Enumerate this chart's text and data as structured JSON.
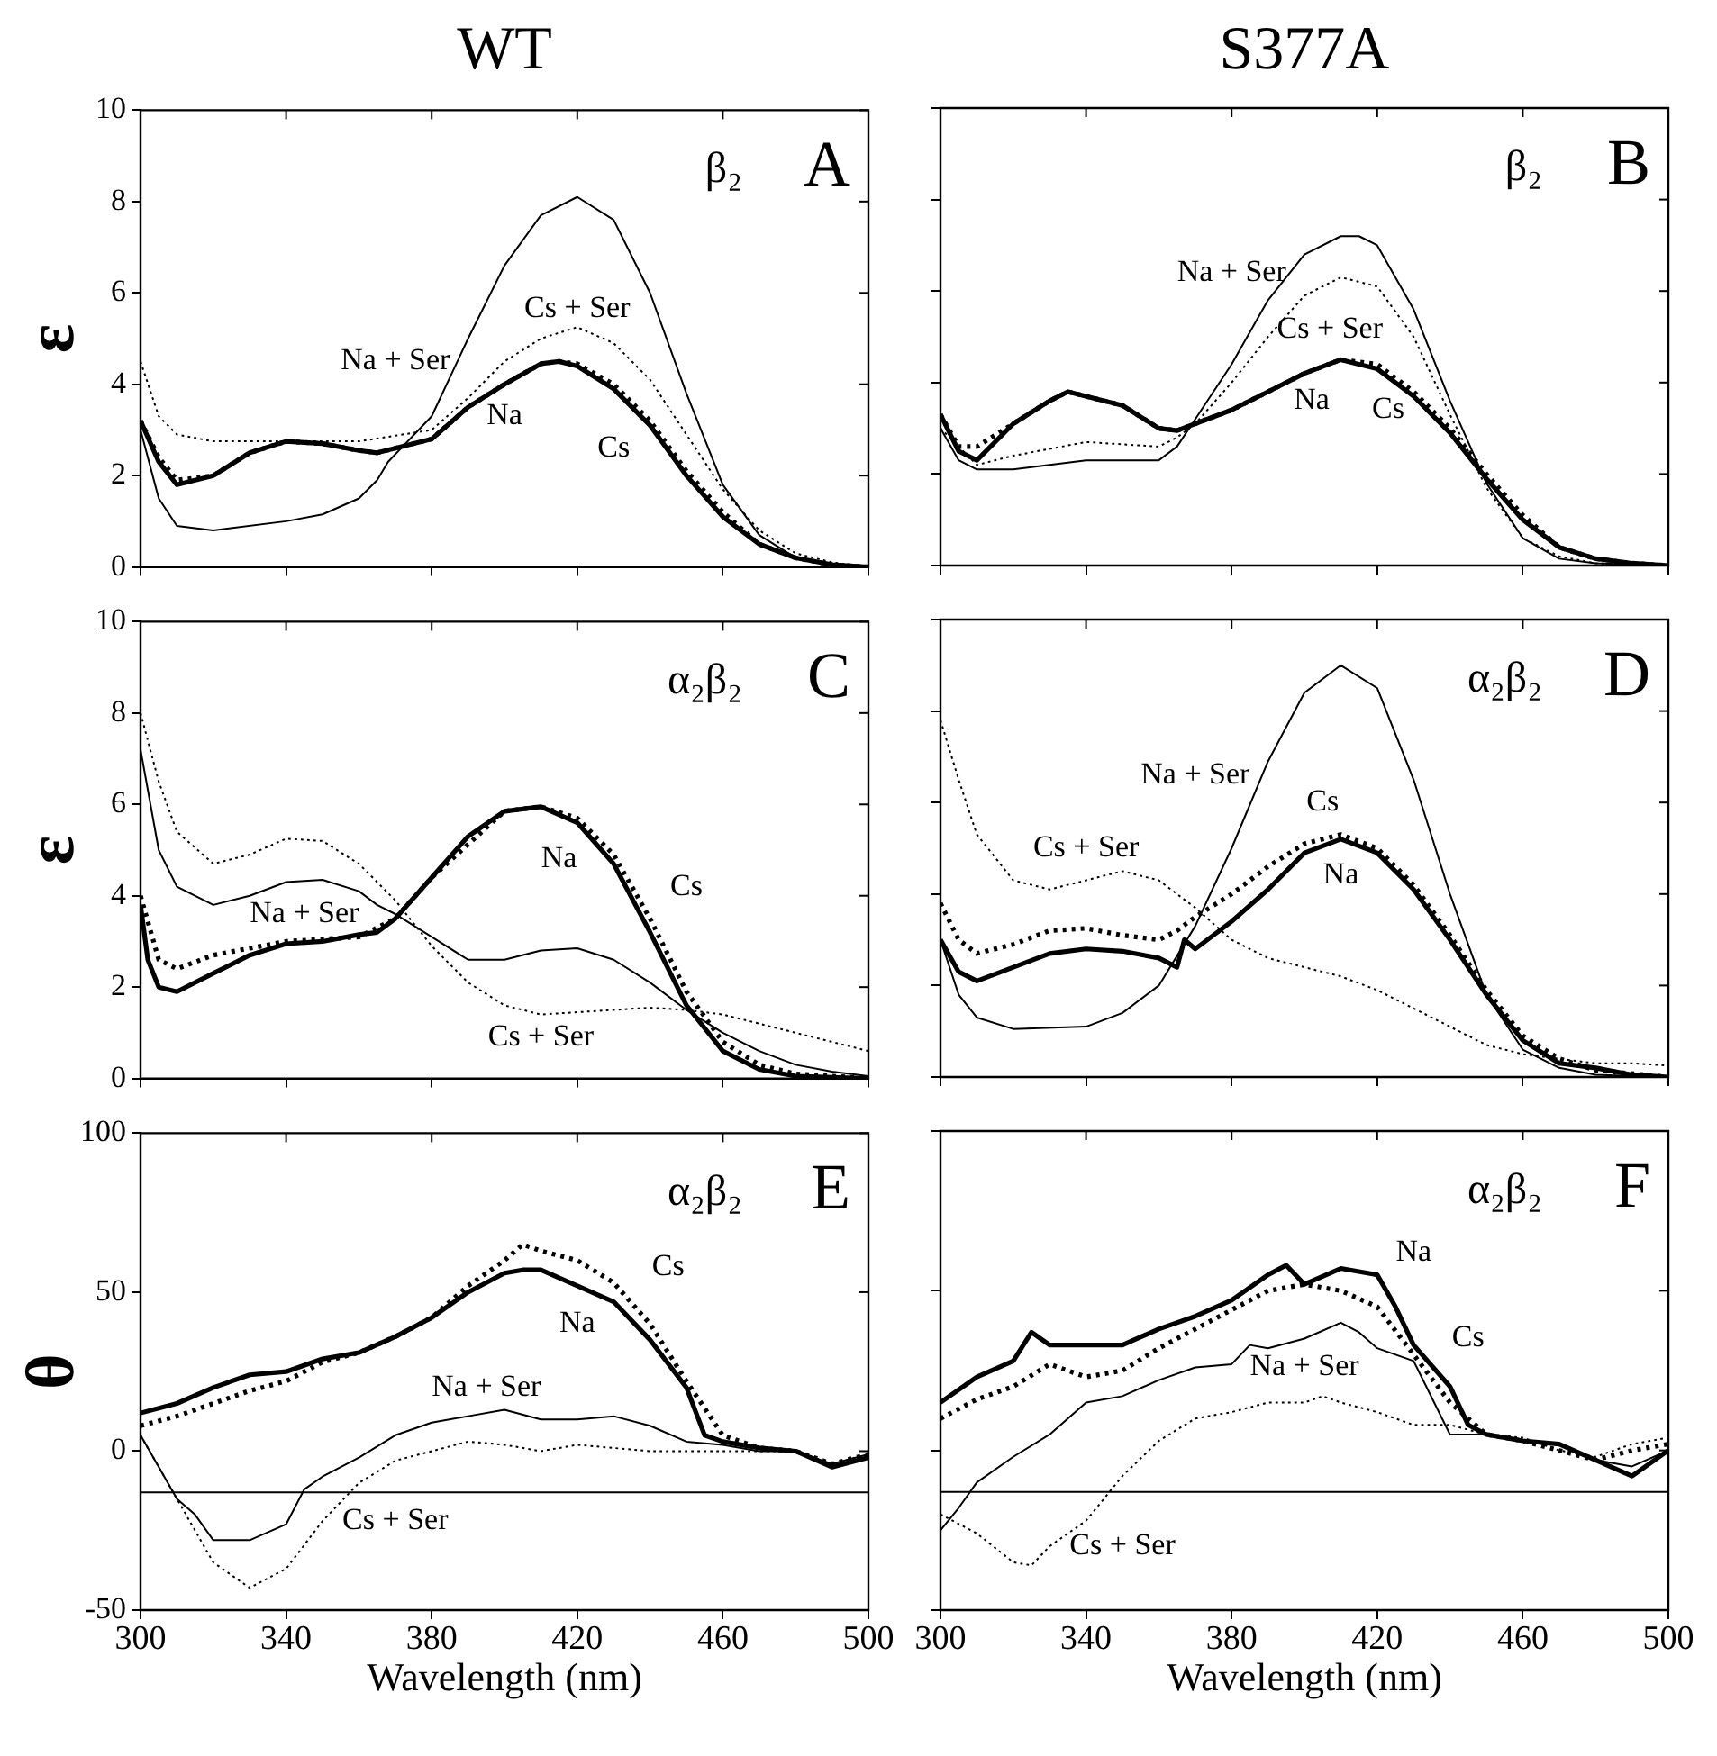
{
  "chart_data": [
    {
      "type": "line",
      "title": "A",
      "subtitle": "β₂",
      "ylabel": "ε",
      "annotations": [
        "WT"
      ],
      "xlim": [
        300,
        500
      ],
      "xticks": [
        300,
        340,
        380,
        420,
        460,
        500
      ],
      "ylim": [
        0,
        10
      ],
      "yticks": [
        0,
        2,
        4,
        6,
        8,
        10
      ],
      "tick_labels": "y",
      "legend": false,
      "grid": false,
      "marker": "none",
      "series": [
        {
          "name": "Na",
          "color": "#000000",
          "line_style": "solid",
          "x": [
            300,
            305,
            310,
            320,
            330,
            340,
            350,
            360,
            365,
            370,
            380,
            390,
            400,
            410,
            415,
            420,
            430,
            440,
            450,
            460,
            470,
            480,
            490,
            500
          ],
          "values": [
            3.2,
            2.3,
            1.8,
            2.0,
            2.5,
            2.75,
            2.7,
            2.55,
            2.5,
            2.6,
            2.8,
            3.5,
            4.0,
            4.45,
            4.5,
            4.4,
            3.9,
            3.1,
            2.0,
            1.1,
            0.5,
            0.2,
            0.05,
            0
          ]
        },
        {
          "name": "Cs",
          "color": "#000000",
          "line_style": "dotted",
          "x": [
            300,
            305,
            310,
            320,
            330,
            340,
            350,
            360,
            365,
            370,
            380,
            390,
            400,
            410,
            415,
            420,
            430,
            440,
            450,
            460,
            470,
            480,
            490,
            500
          ],
          "values": [
            3.2,
            2.4,
            1.9,
            2.0,
            2.5,
            2.75,
            2.7,
            2.55,
            2.5,
            2.6,
            2.8,
            3.5,
            4.0,
            4.45,
            4.5,
            4.45,
            4.0,
            3.2,
            2.1,
            1.2,
            0.5,
            0.2,
            0.05,
            0
          ]
        },
        {
          "name": "Na + Ser",
          "color": "#000000",
          "line_style": "solid",
          "x": [
            300,
            305,
            310,
            320,
            340,
            350,
            360,
            365,
            368,
            380,
            390,
            400,
            410,
            420,
            430,
            440,
            450,
            460,
            470,
            480,
            490,
            500
          ],
          "values": [
            3.0,
            1.5,
            0.9,
            0.8,
            1.0,
            1.15,
            1.5,
            1.9,
            2.3,
            3.3,
            5.0,
            6.6,
            7.7,
            8.1,
            7.6,
            6.0,
            3.8,
            1.8,
            0.7,
            0.2,
            0.05,
            0
          ]
        },
        {
          "name": "Cs + Ser",
          "color": "#000000",
          "line_style": "dotted",
          "x": [
            300,
            305,
            310,
            320,
            340,
            360,
            380,
            390,
            400,
            410,
            420,
            430,
            440,
            450,
            460,
            470,
            480,
            490,
            500
          ],
          "values": [
            4.5,
            3.3,
            2.9,
            2.75,
            2.75,
            2.75,
            3.0,
            3.7,
            4.5,
            5.0,
            5.25,
            4.9,
            4.1,
            2.9,
            1.7,
            0.8,
            0.3,
            0.1,
            0
          ]
        }
      ]
    },
    {
      "type": "line",
      "title": "B",
      "subtitle": "β₂",
      "annotations": [
        "S377A"
      ],
      "xlim": [
        300,
        500
      ],
      "xticks": [
        300,
        340,
        380,
        420,
        460,
        500
      ],
      "ylim": [
        0,
        10
      ],
      "yticks": [
        0,
        2,
        4,
        6,
        8,
        10
      ],
      "tick_labels": false,
      "legend": false,
      "grid": false,
      "marker": "none",
      "series": [
        {
          "name": "Na",
          "color": "#000000",
          "line_style": "solid",
          "x": [
            300,
            305,
            310,
            320,
            330,
            335,
            350,
            360,
            365,
            370,
            380,
            390,
            400,
            410,
            420,
            430,
            440,
            450,
            460,
            470,
            480,
            490,
            500
          ],
          "values": [
            3.3,
            2.5,
            2.3,
            3.1,
            3.6,
            3.8,
            3.5,
            3.0,
            2.95,
            3.1,
            3.4,
            3.8,
            4.2,
            4.5,
            4.3,
            3.7,
            2.9,
            1.9,
            1.0,
            0.4,
            0.15,
            0.05,
            0
          ]
        },
        {
          "name": "Cs",
          "color": "#000000",
          "line_style": "dotted",
          "x": [
            300,
            305,
            310,
            320,
            330,
            335,
            350,
            360,
            365,
            370,
            380,
            390,
            400,
            410,
            420,
            430,
            440,
            450,
            460,
            470,
            480,
            490,
            500
          ],
          "values": [
            3.3,
            2.6,
            2.6,
            3.1,
            3.6,
            3.8,
            3.5,
            3.0,
            2.95,
            3.1,
            3.4,
            3.8,
            4.2,
            4.5,
            4.4,
            3.8,
            3.0,
            2.0,
            1.1,
            0.4,
            0.15,
            0.05,
            0
          ]
        },
        {
          "name": "Na + Ser",
          "color": "#000000",
          "line_style": "solid",
          "x": [
            300,
            305,
            310,
            320,
            340,
            360,
            365,
            370,
            380,
            390,
            400,
            410,
            415,
            420,
            430,
            440,
            450,
            460,
            470,
            480,
            500
          ],
          "values": [
            3.0,
            2.3,
            2.1,
            2.1,
            2.3,
            2.3,
            2.6,
            3.2,
            4.4,
            5.8,
            6.8,
            7.2,
            7.2,
            7.0,
            5.6,
            3.6,
            1.8,
            0.6,
            0.15,
            0.05,
            0
          ]
        },
        {
          "name": "Cs + Ser",
          "color": "#000000",
          "line_style": "dotted",
          "x": [
            300,
            310,
            320,
            340,
            360,
            365,
            370,
            380,
            390,
            400,
            410,
            420,
            430,
            440,
            450,
            460,
            470,
            480,
            500
          ],
          "values": [
            3.0,
            2.2,
            2.4,
            2.7,
            2.6,
            2.8,
            3.1,
            4.0,
            5.0,
            5.9,
            6.3,
            6.1,
            5.0,
            3.3,
            1.7,
            0.6,
            0.2,
            0.05,
            0
          ]
        }
      ]
    },
    {
      "type": "line",
      "title": "C",
      "subtitle": "α₂β₂",
      "ylabel": "ε",
      "xlim": [
        300,
        500
      ],
      "xticks": [
        300,
        340,
        380,
        420,
        460,
        500
      ],
      "ylim": [
        0,
        10
      ],
      "yticks": [
        0,
        2,
        4,
        6,
        8,
        10
      ],
      "tick_labels": "y",
      "legend": false,
      "grid": false,
      "marker": "none",
      "series": [
        {
          "name": "Na",
          "color": "#000000",
          "line_style": "solid",
          "x": [
            300,
            302,
            305,
            310,
            320,
            330,
            340,
            350,
            360,
            365,
            370,
            380,
            390,
            400,
            410,
            420,
            430,
            440,
            450,
            460,
            470,
            480,
            500
          ],
          "values": [
            3.8,
            2.6,
            2.0,
            1.9,
            2.3,
            2.7,
            2.95,
            3.0,
            3.15,
            3.2,
            3.5,
            4.4,
            5.3,
            5.85,
            5.95,
            5.6,
            4.7,
            3.2,
            1.6,
            0.6,
            0.2,
            0.05,
            0
          ]
        },
        {
          "name": "Cs",
          "color": "#000000",
          "line_style": "dotted",
          "x": [
            300,
            305,
            310,
            320,
            340,
            360,
            370,
            380,
            400,
            410,
            420,
            430,
            440,
            450,
            460,
            470,
            480,
            500
          ],
          "values": [
            4.0,
            2.6,
            2.4,
            2.7,
            3.0,
            3.1,
            3.5,
            4.4,
            5.85,
            5.95,
            5.7,
            4.9,
            3.5,
            1.9,
            0.8,
            0.3,
            0.1,
            0
          ]
        },
        {
          "name": "Na + Ser",
          "color": "#000000",
          "line_style": "solid",
          "x": [
            300,
            305,
            310,
            320,
            330,
            340,
            350,
            360,
            365,
            370,
            380,
            390,
            400,
            410,
            420,
            430,
            440,
            450,
            460,
            470,
            480,
            490,
            500
          ],
          "values": [
            7.2,
            5.0,
            4.2,
            3.8,
            4.0,
            4.3,
            4.35,
            4.1,
            3.8,
            3.6,
            3.1,
            2.6,
            2.6,
            2.8,
            2.85,
            2.6,
            2.1,
            1.5,
            1.0,
            0.6,
            0.3,
            0.15,
            0.05
          ]
        },
        {
          "name": "Cs + Ser",
          "color": "#000000",
          "line_style": "dotted",
          "x": [
            300,
            305,
            310,
            320,
            330,
            340,
            350,
            360,
            370,
            380,
            390,
            400,
            410,
            420,
            440,
            450,
            460,
            470,
            480,
            490,
            500
          ],
          "values": [
            8.0,
            6.5,
            5.4,
            4.7,
            4.9,
            5.25,
            5.2,
            4.7,
            3.9,
            2.9,
            2.1,
            1.6,
            1.4,
            1.45,
            1.55,
            1.5,
            1.4,
            1.2,
            1.0,
            0.8,
            0.6
          ]
        }
      ]
    },
    {
      "type": "line",
      "title": "D",
      "subtitle": "α₂β₂",
      "xlim": [
        300,
        500
      ],
      "xticks": [
        300,
        340,
        380,
        420,
        460,
        500
      ],
      "ylim": [
        0,
        10
      ],
      "yticks": [
        0,
        2,
        4,
        6,
        8,
        10
      ],
      "tick_labels": false,
      "legend": false,
      "grid": false,
      "marker": "none",
      "series": [
        {
          "name": "Na",
          "color": "#000000",
          "line_style": "solid",
          "x": [
            300,
            305,
            310,
            320,
            330,
            340,
            350,
            360,
            365,
            367,
            370,
            380,
            390,
            400,
            410,
            420,
            430,
            440,
            450,
            460,
            470,
            480,
            490,
            500
          ],
          "values": [
            3.0,
            2.3,
            2.1,
            2.4,
            2.7,
            2.8,
            2.75,
            2.6,
            2.4,
            3.0,
            2.8,
            3.4,
            4.1,
            4.9,
            5.2,
            4.9,
            4.1,
            3.0,
            1.8,
            0.8,
            0.3,
            0.2,
            0.05,
            0
          ]
        },
        {
          "name": "Cs",
          "color": "#000000",
          "line_style": "dotted",
          "x": [
            300,
            305,
            310,
            320,
            330,
            340,
            350,
            360,
            365,
            370,
            380,
            390,
            400,
            410,
            420,
            430,
            440,
            450,
            460,
            470,
            480,
            500
          ],
          "values": [
            3.8,
            3.0,
            2.7,
            2.9,
            3.2,
            3.25,
            3.1,
            3.0,
            3.2,
            3.5,
            4.0,
            4.6,
            5.1,
            5.3,
            5.0,
            4.2,
            3.1,
            1.9,
            0.9,
            0.4,
            0.15,
            0
          ]
        },
        {
          "name": "Na + Ser",
          "color": "#000000",
          "line_style": "solid",
          "x": [
            300,
            305,
            310,
            320,
            340,
            350,
            360,
            370,
            380,
            390,
            400,
            410,
            420,
            430,
            440,
            450,
            460,
            470,
            480,
            500
          ],
          "values": [
            3.0,
            1.8,
            1.3,
            1.05,
            1.1,
            1.4,
            2.0,
            3.3,
            5.0,
            6.9,
            8.4,
            9.0,
            8.5,
            6.5,
            4.0,
            1.8,
            0.6,
            0.2,
            0.05,
            0
          ]
        },
        {
          "name": "Cs + Ser",
          "color": "#000000",
          "line_style": "dotted",
          "x": [
            300,
            305,
            310,
            320,
            330,
            340,
            350,
            360,
            370,
            380,
            390,
            400,
            410,
            420,
            430,
            440,
            450,
            460,
            470,
            480,
            490,
            500
          ],
          "values": [
            7.8,
            6.5,
            5.3,
            4.3,
            4.1,
            4.3,
            4.5,
            4.3,
            3.7,
            3.0,
            2.6,
            2.4,
            2.2,
            1.9,
            1.5,
            1.1,
            0.7,
            0.5,
            0.4,
            0.3,
            0.3,
            0.25
          ]
        }
      ]
    },
    {
      "type": "line",
      "title": "E",
      "subtitle": "α₂β₂",
      "xlabel": "Wavelength (nm)",
      "ylabel": "θ",
      "xlim": [
        300,
        500
      ],
      "xticks": [
        300,
        340,
        380,
        420,
        460,
        500
      ],
      "ylim": [
        -50,
        100
      ],
      "yticks": [
        -50,
        0,
        50,
        100
      ],
      "legend": false,
      "grid": false,
      "marker": "none",
      "ref_lines": [
        {
          "axis": "y",
          "value": -13
        }
      ],
      "series": [
        {
          "name": "Na",
          "color": "#000000",
          "line_style": "solid",
          "x": [
            300,
            310,
            320,
            330,
            340,
            350,
            360,
            370,
            380,
            390,
            400,
            405,
            410,
            420,
            430,
            440,
            450,
            455,
            460,
            470,
            480,
            490,
            500
          ],
          "values": [
            12,
            15,
            20,
            24,
            25,
            29,
            31,
            36,
            42,
            50,
            56,
            57,
            57,
            52,
            47,
            35,
            20,
            5,
            3,
            1,
            0,
            -5,
            -2
          ]
        },
        {
          "name": "Cs",
          "color": "#000000",
          "line_style": "dotted",
          "x": [
            300,
            310,
            320,
            330,
            340,
            350,
            360,
            370,
            380,
            390,
            400,
            405,
            410,
            420,
            430,
            440,
            450,
            460,
            470,
            480,
            490,
            500
          ],
          "values": [
            8,
            11,
            15,
            19,
            22,
            28,
            31,
            36,
            42,
            52,
            60,
            65,
            63,
            60,
            53,
            40,
            22,
            5,
            1,
            0,
            -4,
            -1
          ]
        },
        {
          "name": "Na + Ser",
          "color": "#000000",
          "line_style": "solid",
          "x": [
            300,
            305,
            310,
            315,
            320,
            330,
            340,
            345,
            350,
            360,
            370,
            380,
            390,
            400,
            410,
            420,
            430,
            440,
            450,
            460,
            470,
            480,
            490,
            500
          ],
          "values": [
            5,
            -5,
            -15,
            -20,
            -28,
            -28,
            -23,
            -12,
            -8,
            -2,
            5,
            9,
            11,
            13,
            10,
            10,
            11,
            8,
            3,
            2,
            0,
            0,
            -4,
            -1
          ]
        },
        {
          "name": "Cs + Ser",
          "color": "#000000",
          "line_style": "dotted",
          "x": [
            300,
            310,
            320,
            330,
            340,
            350,
            360,
            370,
            380,
            390,
            400,
            410,
            420,
            430,
            440,
            450,
            460,
            470,
            480,
            490,
            500
          ],
          "values": [
            5,
            -15,
            -35,
            -43,
            -37,
            -22,
            -10,
            -3,
            0,
            3,
            2,
            0,
            2,
            1,
            0,
            0,
            0,
            0,
            0,
            -4,
            -1
          ]
        }
      ]
    },
    {
      "type": "line",
      "title": "F",
      "subtitle": "α₂β₂",
      "xlabel": "Wavelength (nm)",
      "xlim": [
        300,
        500
      ],
      "xticks": [
        300,
        340,
        380,
        420,
        460,
        500
      ],
      "ylim": [
        -50,
        100
      ],
      "yticks": [
        -50,
        0,
        50,
        100
      ],
      "tick_labels": "x",
      "legend": false,
      "grid": false,
      "marker": "none",
      "ref_lines": [
        {
          "axis": "y",
          "value": -13
        }
      ],
      "series": [
        {
          "name": "Na",
          "color": "#000000",
          "line_style": "solid",
          "x": [
            300,
            310,
            320,
            325,
            330,
            340,
            350,
            360,
            370,
            380,
            390,
            395,
            400,
            410,
            420,
            425,
            430,
            440,
            445,
            450,
            460,
            470,
            480,
            490,
            500
          ],
          "values": [
            15,
            23,
            28,
            37,
            33,
            33,
            33,
            38,
            42,
            47,
            55,
            58,
            52,
            57,
            55,
            45,
            33,
            20,
            8,
            5,
            3,
            2,
            -3,
            -8,
            0
          ]
        },
        {
          "name": "Cs",
          "color": "#000000",
          "line_style": "dotted",
          "x": [
            300,
            310,
            320,
            330,
            340,
            350,
            360,
            370,
            380,
            390,
            400,
            410,
            420,
            430,
            440,
            450,
            460,
            470,
            480,
            490,
            500
          ],
          "values": [
            10,
            16,
            20,
            27,
            23,
            25,
            32,
            38,
            44,
            50,
            52,
            50,
            45,
            30,
            15,
            5,
            3,
            0,
            -3,
            0,
            2
          ]
        },
        {
          "name": "Na + Ser",
          "color": "#000000",
          "line_style": "solid",
          "x": [
            300,
            305,
            310,
            320,
            330,
            340,
            350,
            360,
            370,
            380,
            385,
            390,
            400,
            410,
            415,
            420,
            430,
            440,
            450,
            460,
            470,
            480,
            490,
            500
          ],
          "values": [
            -25,
            -18,
            -10,
            -2,
            5,
            15,
            17,
            22,
            26,
            27,
            33,
            32,
            35,
            40,
            37,
            32,
            28,
            5,
            5,
            3,
            2,
            -3,
            -5,
            0
          ]
        },
        {
          "name": "Cs + Ser",
          "color": "#000000",
          "line_style": "dotted",
          "x": [
            300,
            310,
            320,
            325,
            330,
            340,
            350,
            360,
            370,
            380,
            390,
            400,
            405,
            410,
            420,
            430,
            440,
            450,
            460,
            470,
            480,
            490,
            500
          ],
          "values": [
            -20,
            -26,
            -35,
            -36,
            -30,
            -22,
            -8,
            3,
            10,
            12,
            15,
            15,
            17,
            15,
            12,
            8,
            8,
            5,
            4,
            0,
            -2,
            2,
            4
          ]
        }
      ]
    }
  ]
}
